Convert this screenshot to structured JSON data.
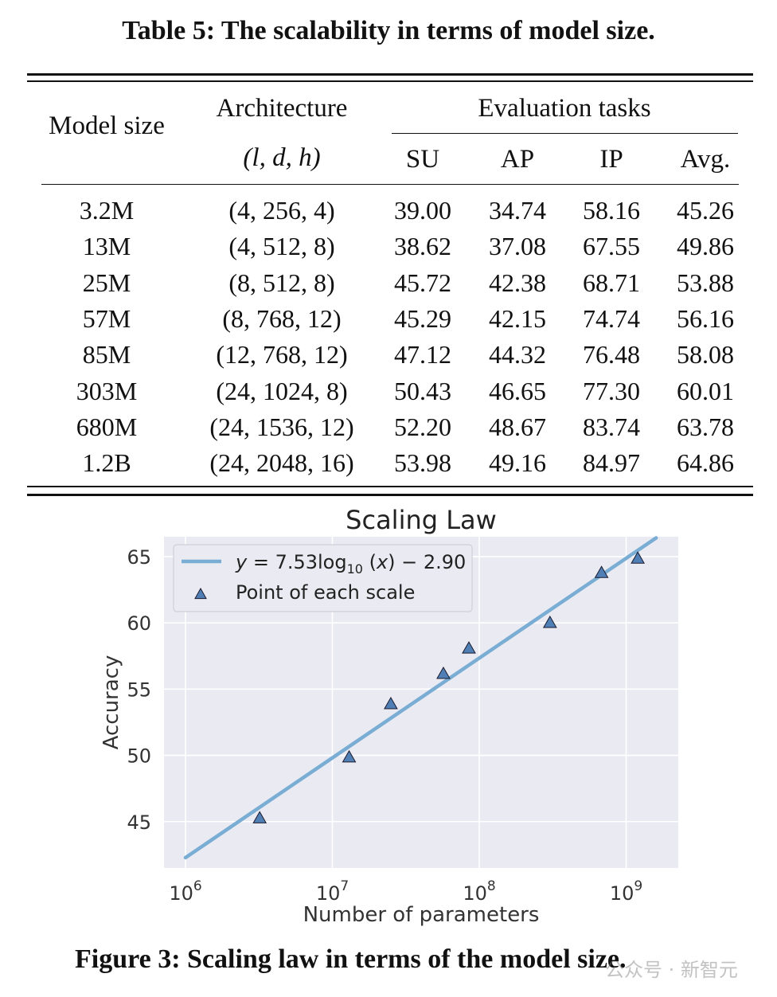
{
  "table": {
    "caption": "Table 5: The scalability in terms of model size.",
    "headers": {
      "model_size": "Model size",
      "architecture": "Architecture",
      "architecture_sub": "(l, d, h)",
      "eval_group": "Evaluation tasks",
      "su": "SU",
      "ap": "AP",
      "ip": "IP",
      "avg": "Avg."
    },
    "rows": [
      {
        "size": "3.2M",
        "arch": "(4, 256, 4)",
        "su": "39.00",
        "ap": "34.74",
        "ip": "58.16",
        "avg": "45.26"
      },
      {
        "size": "13M",
        "arch": "(4, 512, 8)",
        "su": "38.62",
        "ap": "37.08",
        "ip": "67.55",
        "avg": "49.86"
      },
      {
        "size": "25M",
        "arch": "(8, 512, 8)",
        "su": "45.72",
        "ap": "42.38",
        "ip": "68.71",
        "avg": "53.88"
      },
      {
        "size": "57M",
        "arch": "(8, 768, 12)",
        "su": "45.29",
        "ap": "42.15",
        "ip": "74.74",
        "avg": "56.16"
      },
      {
        "size": "85M",
        "arch": "(12, 768, 12)",
        "su": "47.12",
        "ap": "44.32",
        "ip": "76.48",
        "avg": "58.08"
      },
      {
        "size": "303M",
        "arch": "(24, 1024, 8)",
        "su": "50.43",
        "ap": "46.65",
        "ip": "77.30",
        "avg": "60.01"
      },
      {
        "size": "680M",
        "arch": "(24, 1536, 12)",
        "su": "52.20",
        "ap": "48.67",
        "ip": "83.74",
        "avg": "63.78"
      },
      {
        "size": "1.2B",
        "arch": "(24, 2048, 16)",
        "su": "53.98",
        "ap": "49.16",
        "ip": "84.97",
        "avg": "64.86"
      }
    ]
  },
  "chart_data": {
    "type": "scatter",
    "title": "Scaling Law",
    "xlabel": "Number of parameters",
    "ylabel": "Accuracy",
    "xscale": "log",
    "xlim": [
      1000000,
      1600000000
    ],
    "ylim": [
      41.5,
      66.5
    ],
    "xticks": [
      1000000,
      10000000,
      100000000,
      1000000000
    ],
    "xtick_labels": [
      {
        "base": "10",
        "exp": "6"
      },
      {
        "base": "10",
        "exp": "7"
      },
      {
        "base": "10",
        "exp": "8"
      },
      {
        "base": "10",
        "exp": "9"
      }
    ],
    "yticks": [
      45,
      50,
      55,
      60,
      65
    ],
    "grid": true,
    "legend_position": "top-left",
    "series": [
      {
        "name": "y = 7.53log10 (x) − 2.90",
        "kind": "line",
        "color": "#7aadd4",
        "x": [
          1000000,
          1600000000
        ],
        "y": [
          42.28,
          66.41
        ]
      },
      {
        "name": "Point of each scale",
        "kind": "scatter",
        "marker": "triangle",
        "color": "#4f7fb5",
        "x": [
          3200000,
          13000000,
          25000000,
          57000000,
          85000000,
          303000000,
          680000000,
          1200000000
        ],
        "y": [
          45.26,
          49.86,
          53.88,
          56.16,
          58.08,
          60.01,
          63.78,
          64.86
        ]
      }
    ],
    "legend_line_label": {
      "lhs": "y",
      "mid": " = 7.53log",
      "sub": "10",
      "rhs_x": "x",
      "rhs": " − 2.90"
    },
    "legend_point_label": "Point of each scale"
  },
  "figure_caption": "Figure 3: Scaling law in terms of the model size.",
  "watermark": "公众号 · 新智元"
}
